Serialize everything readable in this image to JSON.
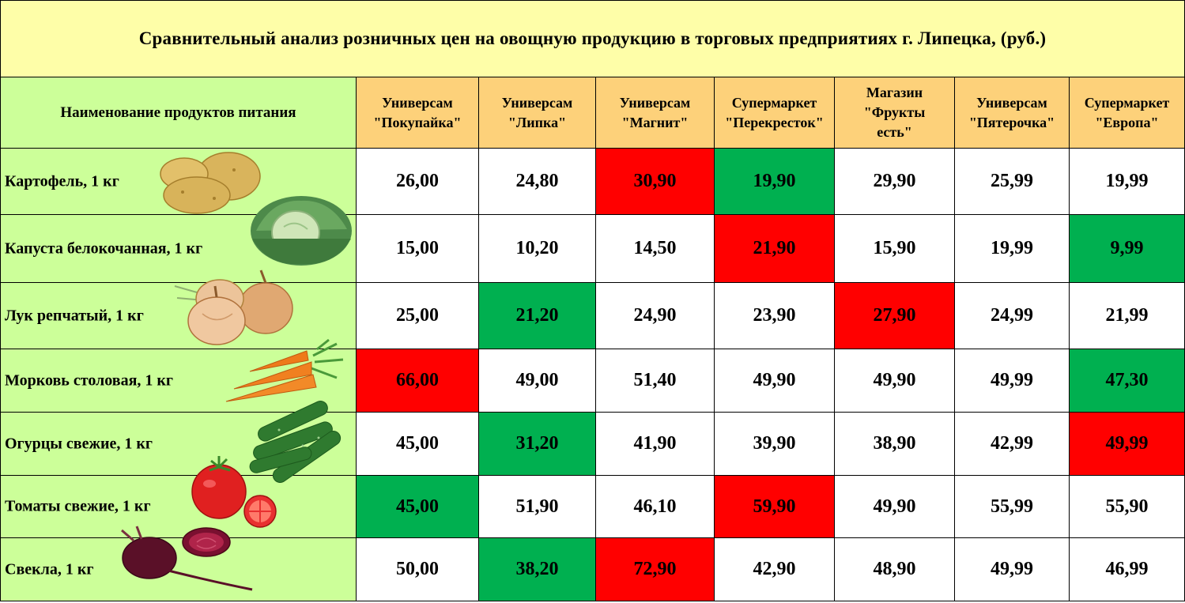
{
  "title": "Сравнительный анализ розничных цен на овощную продукцию в торговых предприятиях г. Липецка, (руб.)",
  "colors": {
    "title_bg": "#fefea8",
    "name_bg": "#ccff99",
    "header_bg": "#fdd17a",
    "highest": "#ff0000",
    "lowest": "#00b050"
  },
  "header": {
    "name_column": "Наименование продуктов питания",
    "stores": [
      [
        "Универсам",
        "\"Покупайка\""
      ],
      [
        "Универсам",
        "\"Липка\""
      ],
      [
        "Универсам",
        "\"Магнит\""
      ],
      [
        "Супермаркет",
        "\"Перекресток\""
      ],
      [
        "Магазин",
        "\"Фрукты",
        "есть\""
      ],
      [
        "Универсам",
        "\"Пятерочка\""
      ],
      [
        "Супермаркет",
        "\"Европа\""
      ]
    ]
  },
  "rows": [
    {
      "name": "Картофель, 1 кг",
      "icon": "potato-icon",
      "prices": [
        "26,00",
        "24,80",
        "30,90",
        "19,90",
        "29,90",
        "25,99",
        "19,99"
      ],
      "status": [
        "",
        "",
        "max",
        "min",
        "",
        "",
        ""
      ]
    },
    {
      "name": "Капуста белокочанная, 1 кг",
      "icon": "cabbage-icon",
      "prices": [
        "15,00",
        "10,20",
        "14,50",
        "21,90",
        "15,90",
        "19,99",
        "9,99"
      ],
      "status": [
        "",
        "",
        "",
        "max",
        "",
        "",
        "min"
      ]
    },
    {
      "name": "Лук репчатый, 1 кг",
      "icon": "onion-icon",
      "prices": [
        "25,00",
        "21,20",
        "24,90",
        "23,90",
        "27,90",
        "24,99",
        "21,99"
      ],
      "status": [
        "",
        "min",
        "",
        "",
        "max",
        "",
        ""
      ]
    },
    {
      "name": "Морковь столовая, 1 кг",
      "icon": "carrot-icon",
      "prices": [
        "66,00",
        "49,00",
        "51,40",
        "49,90",
        "49,90",
        "49,99",
        "47,30"
      ],
      "status": [
        "max",
        "",
        "",
        "",
        "",
        "",
        "min"
      ]
    },
    {
      "name": "Огурцы свежие, 1 кг",
      "icon": "cucumber-icon",
      "prices": [
        "45,00",
        "31,20",
        "41,90",
        "39,90",
        "38,90",
        "42,99",
        "49,99"
      ],
      "status": [
        "",
        "min",
        "",
        "",
        "",
        "",
        "max"
      ]
    },
    {
      "name": "Томаты свежие, 1 кг",
      "icon": "tomato-icon",
      "prices": [
        "45,00",
        "51,90",
        "46,10",
        "59,90",
        "49,90",
        "55,99",
        "55,90"
      ],
      "status": [
        "min",
        "",
        "",
        "max",
        "",
        "",
        ""
      ]
    },
    {
      "name": "Свекла, 1 кг",
      "icon": "beet-icon",
      "prices": [
        "50,00",
        "38,20",
        "72,90",
        "42,90",
        "48,90",
        "49,99",
        "46,99"
      ],
      "status": [
        "",
        "min",
        "max",
        "",
        "",
        "",
        ""
      ]
    }
  ]
}
